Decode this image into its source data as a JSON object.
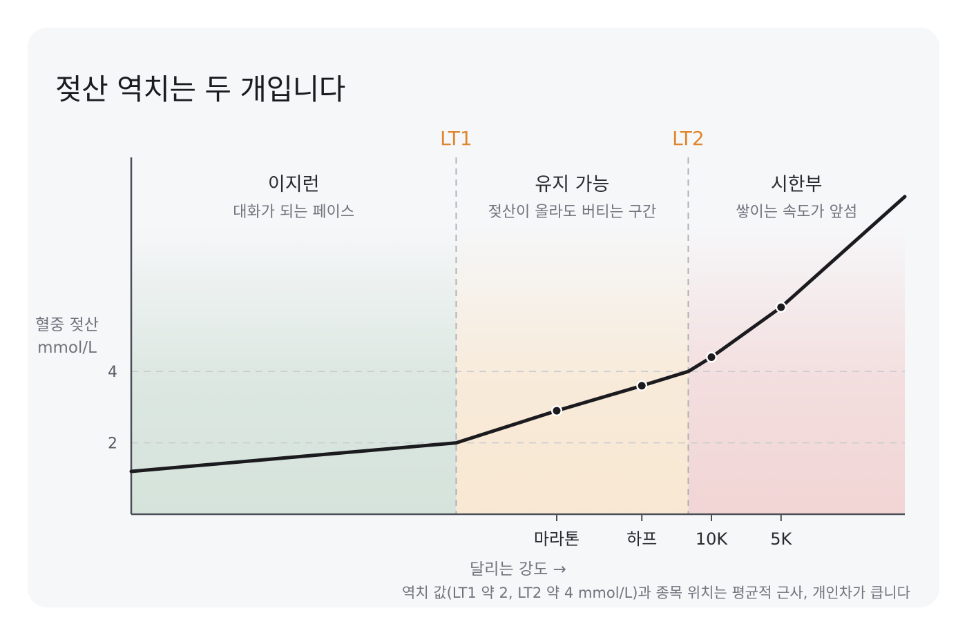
{
  "title": "젖산 역치는 두 개입니다",
  "colors": {
    "zone1": "#d5e3db",
    "zone2": "#f8e8d3",
    "zone3": "#f2d5d5",
    "threshold": "#e0852c",
    "curve": "#1b1b1f"
  },
  "zones": [
    {
      "name": "이지런",
      "desc": "대화가 되는 페이스"
    },
    {
      "name": "유지 가능",
      "desc": "젖산이 올라도 버티는 구간"
    },
    {
      "name": "시한부",
      "desc": "쌓이는 속도가 앞섬"
    }
  ],
  "chart_data": {
    "type": "line",
    "ylabel": [
      "혈중 젖산",
      "mmol/L"
    ],
    "xlabel": "달리는 강도 →",
    "ylim": [
      0,
      10
    ],
    "yticks": [
      2,
      4
    ],
    "grid": "dashed at y ticks",
    "thresholds": [
      {
        "label": "LT1",
        "x": 0.42,
        "y": 2
      },
      {
        "label": "LT2",
        "x": 0.72,
        "y": 4
      }
    ],
    "series": [
      {
        "x": [
          0,
          0.42,
          0.55,
          0.66,
          0.72,
          0.75,
          0.84,
          1.0
        ],
        "y": [
          1.2,
          2.0,
          2.9,
          3.6,
          4.0,
          4.4,
          5.8,
          8.9
        ]
      }
    ],
    "markers": [
      {
        "label": "마라톤",
        "x": 0.55,
        "y": 2.9
      },
      {
        "label": "하프",
        "x": 0.66,
        "y": 3.6
      },
      {
        "label": "10K",
        "x": 0.75,
        "y": 4.4
      },
      {
        "label": "5K",
        "x": 0.84,
        "y": 5.8
      }
    ],
    "note": "역치 값(LT1 약 2, LT2 약 4 mmol/L)과 종목 위치는 평균적 근사, 개인차가 큽니다"
  }
}
